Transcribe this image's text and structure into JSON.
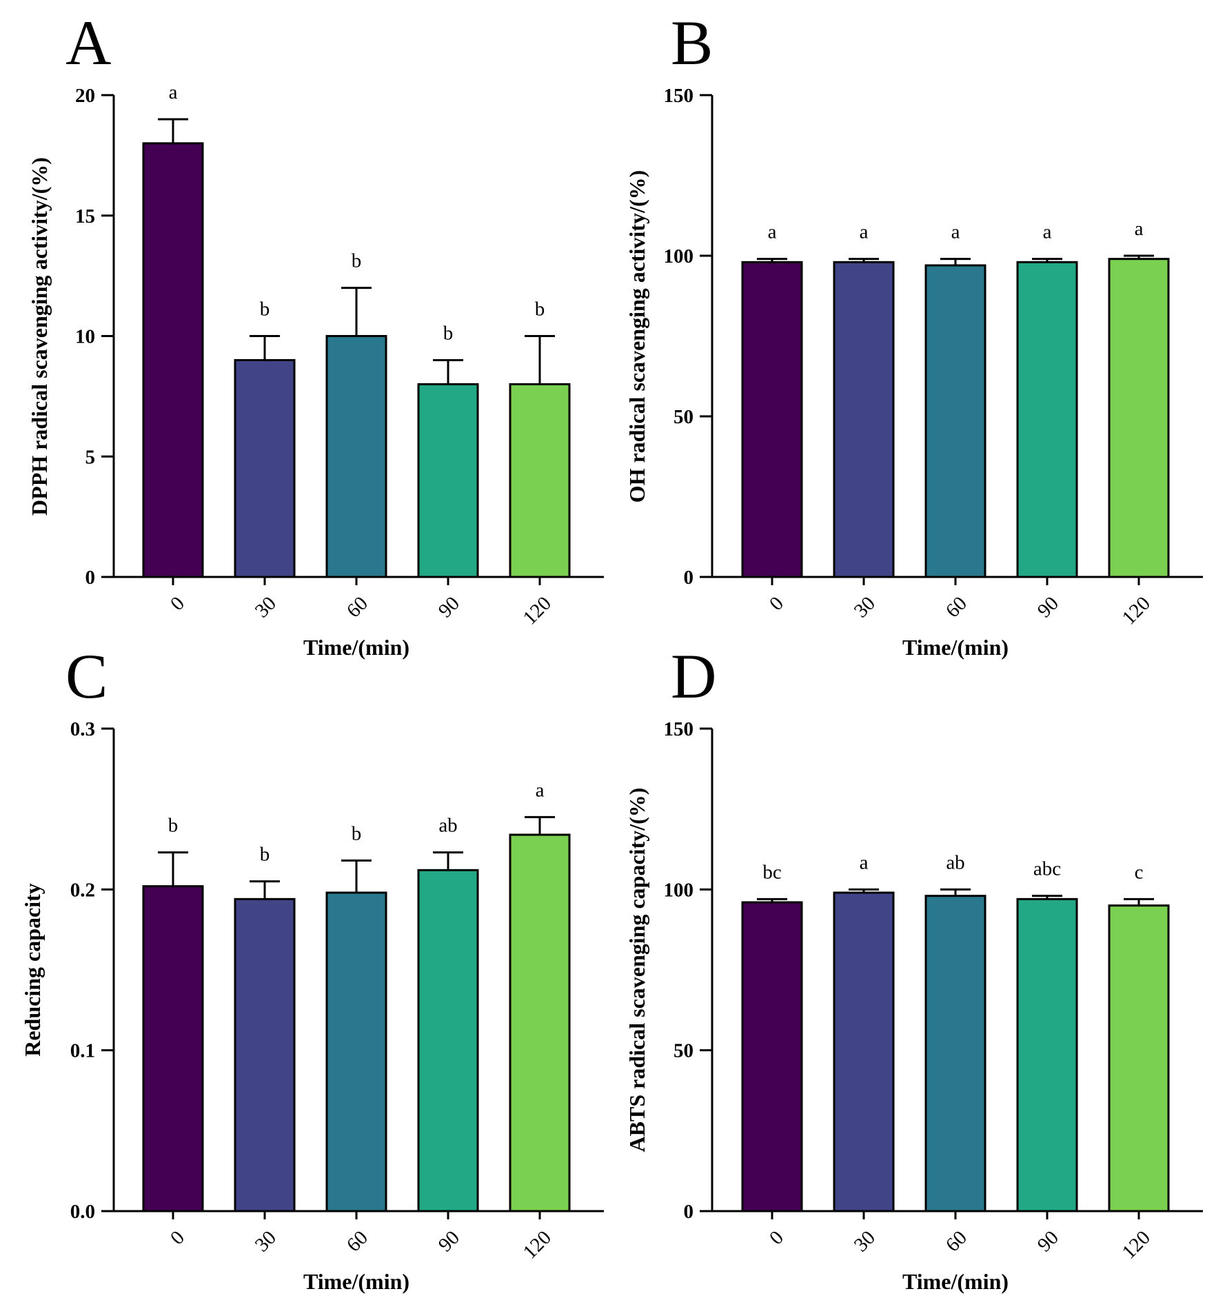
{
  "chart_data": [
    {
      "type": "bar",
      "panel": "A",
      "categories": [
        "0",
        "30",
        "60",
        "90",
        "120"
      ],
      "values": [
        18,
        9,
        10,
        8,
        8
      ],
      "errors": [
        1,
        1,
        2,
        1,
        2
      ],
      "significance": [
        "a",
        "b",
        "b",
        "b",
        "b"
      ],
      "xlabel": "Time/(min)",
      "ylabel": "DPPH radical scavenging activity/(%)",
      "ylim": [
        0,
        20
      ],
      "yticks": [
        "0",
        "5",
        "10",
        "15",
        "20"
      ],
      "bar_colors": [
        "#440154",
        "#414487",
        "#2a788e",
        "#22a884",
        "#7ad151"
      ]
    },
    {
      "type": "bar",
      "panel": "B",
      "categories": [
        "0",
        "30",
        "60",
        "90",
        "120"
      ],
      "values": [
        98,
        98,
        97,
        98,
        99
      ],
      "errors": [
        1,
        1,
        2,
        1,
        1
      ],
      "significance": [
        "a",
        "a",
        "a",
        "a",
        "a"
      ],
      "xlabel": "Time/(min)",
      "ylabel": "OH radical scavenging activity/(%)",
      "ylim": [
        0,
        150
      ],
      "yticks": [
        "0",
        "50",
        "100",
        "150"
      ],
      "bar_colors": [
        "#440154",
        "#414487",
        "#2a788e",
        "#22a884",
        "#7ad151"
      ]
    },
    {
      "type": "bar",
      "panel": "C",
      "categories": [
        "0",
        "30",
        "60",
        "90",
        "120"
      ],
      "values": [
        0.202,
        0.194,
        0.198,
        0.212,
        0.234
      ],
      "errors": [
        0.021,
        0.011,
        0.02,
        0.011,
        0.011
      ],
      "significance": [
        "b",
        "b",
        "b",
        "ab",
        "a"
      ],
      "xlabel": "Time/(min)",
      "ylabel": "Reducing capacity",
      "ylim": [
        0,
        0.3
      ],
      "yticks": [
        "0.0",
        "0.1",
        "0.2",
        "0.3"
      ],
      "bar_colors": [
        "#440154",
        "#414487",
        "#2a788e",
        "#22a884",
        "#7ad151"
      ]
    },
    {
      "type": "bar",
      "panel": "D",
      "categories": [
        "0",
        "30",
        "60",
        "90",
        "120"
      ],
      "values": [
        96,
        99,
        98,
        97,
        95
      ],
      "errors": [
        1,
        1,
        2,
        1,
        2
      ],
      "significance": [
        "bc",
        "a",
        "ab",
        "abc",
        "c"
      ],
      "xlabel": "Time/(min)",
      "ylabel": "ABTS radical scavenging  capacity/(%)",
      "ylim": [
        0,
        150
      ],
      "yticks": [
        "0",
        "50",
        "100",
        "150"
      ],
      "bar_colors": [
        "#440154",
        "#414487",
        "#2a788e",
        "#22a884",
        "#7ad151"
      ]
    }
  ]
}
